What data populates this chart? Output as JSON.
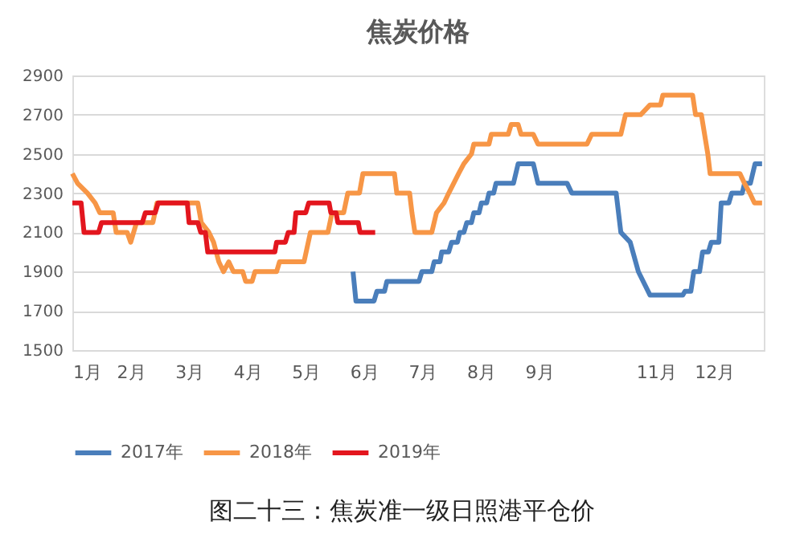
{
  "chart_data": {
    "type": "line",
    "title": "焦炭价格",
    "xlim": [
      1,
      12.85
    ],
    "xticks": [
      {
        "value": 1,
        "label": "1月"
      },
      {
        "value": 2,
        "label": "2月"
      },
      {
        "value": 3,
        "label": "3月"
      },
      {
        "value": 4,
        "label": "4月"
      },
      {
        "value": 5,
        "label": "5月"
      },
      {
        "value": 6,
        "label": "6月"
      },
      {
        "value": 7,
        "label": "7月"
      },
      {
        "value": 8,
        "label": "8月"
      },
      {
        "value": 9,
        "label": "9月"
      },
      {
        "value": 11,
        "label": "11月"
      },
      {
        "value": 12,
        "label": "12月"
      }
    ],
    "ylim": [
      1500,
      2900
    ],
    "yticks": [
      1500,
      1700,
      1900,
      2100,
      2300,
      2500,
      2700,
      2900
    ],
    "grid": "y",
    "legend": "bottom",
    "line_style": "solid",
    "marker": "none",
    "annotations": [
      "图二十三：焦炭准一级日照港平仓价"
    ],
    "series": [
      {
        "name": "2017年",
        "color": "#4a7ebb",
        "x": [
          5.81,
          5.86,
          6.17,
          6.22,
          6.35,
          6.39,
          6.94,
          6.99,
          7.16,
          7.2,
          7.3,
          7.33,
          7.45,
          7.5,
          7.6,
          7.64,
          7.71,
          7.76,
          7.84,
          7.88,
          7.97,
          8.01,
          8.1,
          8.14,
          8.22,
          8.26,
          8.56,
          8.64,
          8.9,
          8.98,
          9.48,
          9.56,
          10.32,
          10.4,
          10.56,
          10.7,
          10.9,
          11.46,
          11.5,
          11.6,
          11.65,
          11.75,
          11.8,
          11.9,
          11.95,
          12.08,
          12.12,
          12.25,
          12.3,
          12.48,
          12.52,
          12.62,
          12.7,
          12.82
        ],
        "values": [
          1900,
          1750,
          1750,
          1800,
          1800,
          1850,
          1850,
          1900,
          1900,
          1950,
          1950,
          2000,
          2000,
          2050,
          2050,
          2100,
          2100,
          2150,
          2150,
          2200,
          2200,
          2250,
          2250,
          2300,
          2300,
          2350,
          2350,
          2450,
          2450,
          2350,
          2350,
          2300,
          2300,
          2100,
          2050,
          1900,
          1780,
          1780,
          1800,
          1800,
          1900,
          1900,
          2000,
          2000,
          2050,
          2050,
          2250,
          2250,
          2300,
          2300,
          2350,
          2350,
          2450,
          2450
        ]
      },
      {
        "name": "2018年",
        "color": "#f79646",
        "x": [
          1.0,
          1.09,
          1.26,
          1.39,
          1.47,
          1.7,
          1.75,
          1.94,
          2.0,
          2.1,
          2.38,
          2.45,
          3.15,
          3.21,
          3.34,
          3.42,
          3.51,
          3.59,
          3.68,
          3.76,
          3.92,
          3.97,
          4.08,
          4.13,
          4.5,
          4.55,
          4.97,
          5.08,
          5.38,
          5.45,
          5.65,
          5.72,
          5.92,
          5.98,
          6.52,
          6.56,
          6.78,
          6.82,
          6.87,
          7.16,
          7.24,
          7.37,
          7.45,
          7.62,
          7.71,
          7.84,
          7.88,
          8.14,
          8.18,
          8.47,
          8.52,
          8.64,
          8.69,
          8.9,
          8.98,
          9.82,
          9.9,
          10.4,
          10.48,
          10.74,
          10.9,
          11.08,
          11.12,
          11.63,
          11.68,
          11.78,
          11.89,
          11.93,
          12.44,
          12.52,
          12.61,
          12.69,
          12.82
        ],
        "values": [
          2400,
          2350,
          2300,
          2250,
          2200,
          2200,
          2100,
          2100,
          2050,
          2150,
          2150,
          2250,
          2250,
          2150,
          2100,
          2050,
          1950,
          1900,
          1950,
          1900,
          1900,
          1850,
          1850,
          1900,
          1900,
          1950,
          1950,
          2100,
          2100,
          2200,
          2200,
          2300,
          2300,
          2400,
          2400,
          2300,
          2300,
          2200,
          2100,
          2100,
          2200,
          2250,
          2300,
          2400,
          2450,
          2500,
          2550,
          2550,
          2600,
          2600,
          2650,
          2650,
          2600,
          2600,
          2550,
          2550,
          2600,
          2600,
          2700,
          2700,
          2750,
          2750,
          2800,
          2800,
          2700,
          2700,
          2500,
          2400,
          2400,
          2350,
          2300,
          2250,
          2250
        ]
      },
      {
        "name": "2019年",
        "color": "#e3161e",
        "x": [
          1.0,
          1.15,
          1.2,
          1.45,
          1.5,
          2.2,
          2.25,
          2.42,
          2.47,
          2.97,
          3.0,
          3.15,
          3.2,
          3.28,
          3.32,
          4.47,
          4.5,
          4.65,
          4.7,
          4.8,
          4.83,
          5.0,
          5.05,
          5.4,
          5.43,
          5.52,
          5.55,
          5.9,
          5.93,
          6.19
        ],
        "values": [
          2250,
          2250,
          2100,
          2100,
          2150,
          2150,
          2200,
          2200,
          2250,
          2250,
          2150,
          2150,
          2100,
          2100,
          2000,
          2000,
          2050,
          2050,
          2100,
          2100,
          2200,
          2200,
          2250,
          2250,
          2200,
          2200,
          2150,
          2150,
          2100,
          2100
        ]
      }
    ]
  }
}
